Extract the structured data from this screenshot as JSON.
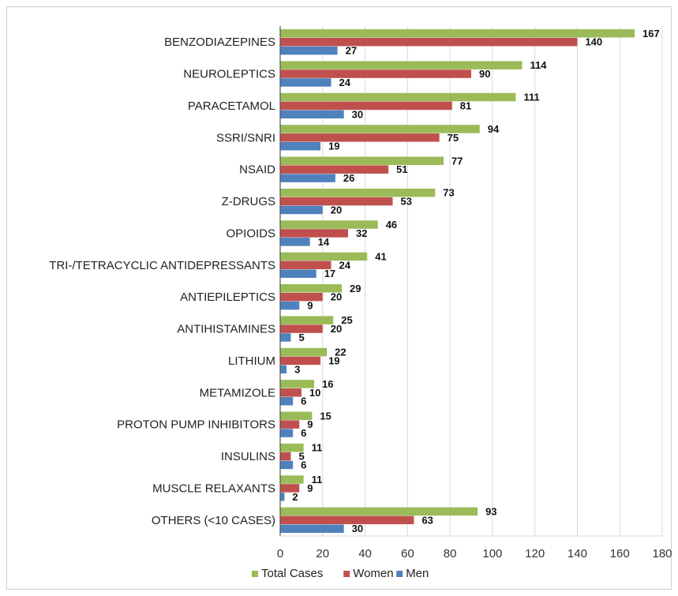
{
  "chart_data": {
    "type": "bar",
    "orientation": "horizontal",
    "categories": [
      "BENZODIAZEPINES",
      "NEUROLEPTICS",
      "PARACETAMOL",
      "SSRI/SNRI",
      "NSAID",
      "Z-DRUGS",
      "OPIOIDS",
      "TRI-/TETRACYCLIC ANTIDEPRESSANTS",
      "ANTIEPILEPTICS",
      "ANTIHISTAMINES",
      "LITHIUM",
      "METAMIZOLE",
      "PROTON PUMP INHIBITORS",
      "INSULINS",
      "MUSCLE RELAXANTS",
      "OTHERS (<10 CASES)"
    ],
    "series": [
      {
        "name": "Total Cases",
        "color": "#9bbb59",
        "values": [
          167,
          114,
          111,
          94,
          77,
          73,
          46,
          41,
          29,
          25,
          22,
          16,
          15,
          11,
          11,
          93
        ]
      },
      {
        "name": "Women",
        "color": "#c0504d",
        "values": [
          140,
          90,
          81,
          75,
          51,
          53,
          32,
          24,
          20,
          20,
          19,
          10,
          9,
          5,
          9,
          63
        ]
      },
      {
        "name": "Men",
        "color": "#4f81bd",
        "values": [
          27,
          24,
          30,
          19,
          26,
          20,
          14,
          17,
          9,
          5,
          3,
          6,
          6,
          6,
          2,
          30
        ]
      }
    ],
    "xlim": [
      0,
      180
    ],
    "xticks": [
      0,
      20,
      40,
      60,
      80,
      100,
      120,
      140,
      160,
      180
    ],
    "grid": true,
    "legend_position": "bottom",
    "title": "",
    "xlabel": "",
    "ylabel": ""
  }
}
